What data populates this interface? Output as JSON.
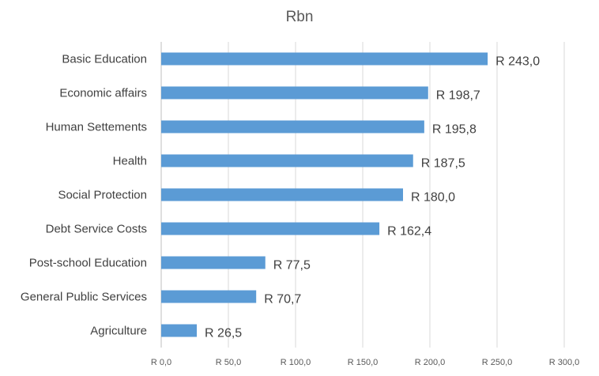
{
  "chart_data": {
    "type": "bar",
    "orientation": "horizontal",
    "title": "Rbn",
    "categories": [
      "Basic Education",
      "Economic affairs",
      "Human Settements",
      "Health ",
      "Social Protection",
      "Debt Service Costs",
      "Post-school Education",
      "General Public Services",
      "Agriculture"
    ],
    "values": [
      243.0,
      198.7,
      195.8,
      187.5,
      180.0,
      162.4,
      77.5,
      70.7,
      26.5
    ],
    "value_labels": [
      "R 243,0",
      "R 198,7",
      "R 195,8",
      "R 187,5",
      "R 180,0",
      "R 162,4",
      "R 77,5",
      "R 70,7",
      "R 26,5"
    ],
    "xlim": [
      0,
      300
    ],
    "ticks": [
      0,
      50,
      100,
      150,
      200,
      250,
      300
    ],
    "tick_labels": [
      "R 0,0",
      "R 50,0",
      "R 100,0",
      "R 150,0",
      "R 200,0",
      "R 250,0",
      "R 300,0"
    ],
    "grid": true,
    "legend": "none",
    "colors": {
      "bar": "#5b9bd5",
      "grid": "#d9d9d9",
      "text": "#404040"
    }
  }
}
